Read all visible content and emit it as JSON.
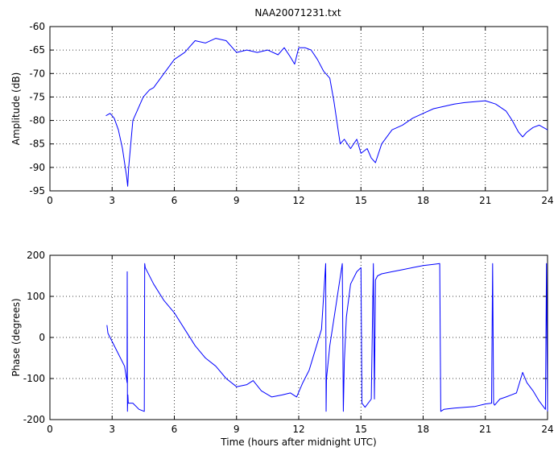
{
  "chart_data": [
    {
      "type": "line",
      "title": "NAA20071231.txt",
      "xlabel": "",
      "ylabel": "Amplitude (dB)",
      "xlim": [
        0,
        24
      ],
      "ylim": [
        -95,
        -60
      ],
      "xticks": [
        0,
        3,
        6,
        9,
        12,
        15,
        18,
        21,
        24
      ],
      "yticks": [
        -95,
        -90,
        -85,
        -80,
        -75,
        -70,
        -65,
        -60
      ],
      "grid": true,
      "color": "#0000ff",
      "series": [
        {
          "x": [
            2.7,
            2.9,
            3.1,
            3.3,
            3.5,
            3.6,
            3.7,
            3.75,
            3.8,
            3.9,
            4.0,
            4.2,
            4.5,
            4.8,
            5.0,
            5.5,
            6.0,
            6.5,
            7.0,
            7.5,
            8.0,
            8.5,
            9.0,
            9.5,
            10.0,
            10.5,
            11.0,
            11.3,
            11.6,
            11.8,
            12.0,
            12.3,
            12.6,
            12.9,
            13.2,
            13.5,
            13.7,
            13.9,
            14.0,
            14.2,
            14.5,
            14.8,
            15.0,
            15.3,
            15.5,
            15.7,
            16.0,
            16.5,
            17.0,
            17.5,
            18.0,
            18.5,
            19.0,
            19.5,
            20.0,
            20.5,
            21.0,
            21.5,
            22.0,
            22.3,
            22.6,
            22.8,
            23.0,
            23.3,
            23.6,
            24.0
          ],
          "y": [
            -79,
            -78.5,
            -79.5,
            -82,
            -86,
            -89,
            -92,
            -94,
            -90,
            -85,
            -80,
            -78,
            -75,
            -73.5,
            -73,
            -70,
            -67,
            -65.5,
            -63,
            -63.5,
            -62.5,
            -63,
            -65.5,
            -65,
            -65.5,
            -65,
            -66,
            -64.5,
            -66.5,
            -68,
            -64.5,
            -64.5,
            -65,
            -67,
            -69.5,
            -71,
            -76,
            -82,
            -85,
            -84,
            -86,
            -84,
            -87,
            -86,
            -88,
            -89,
            -85,
            -82,
            -81,
            -79.5,
            -78.5,
            -77.5,
            -77,
            -76.5,
            -76.2,
            -76,
            -75.8,
            -76.5,
            -78,
            -80,
            -82.5,
            -83.5,
            -82.5,
            -81.5,
            -81,
            -82
          ]
        }
      ]
    },
    {
      "type": "line",
      "title": "",
      "xlabel": "Time (hours after midnight UTC)",
      "ylabel": "Phase (degrees)",
      "xlim": [
        0,
        24
      ],
      "ylim": [
        -200,
        200
      ],
      "xticks": [
        0,
        3,
        6,
        9,
        12,
        15,
        18,
        21,
        24
      ],
      "yticks": [
        -200,
        -100,
        0,
        100,
        200
      ],
      "grid": true,
      "color": "#0000ff",
      "series": [
        {
          "x": [
            2.75,
            2.8,
            3.0,
            3.3,
            3.6,
            3.72,
            3.73,
            3.74,
            3.76,
            3.78,
            4.0,
            4.3,
            4.55,
            4.57,
            4.6,
            5.0,
            5.5,
            6.0,
            6.5,
            7.0,
            7.5,
            8.0,
            8.5,
            9.0,
            9.5,
            9.8,
            10.2,
            10.7,
            11.2,
            11.6,
            11.9,
            12.2,
            12.5,
            12.8,
            13.1,
            13.3,
            13.32,
            13.34,
            13.5,
            13.8,
            14.1,
            14.15,
            14.2,
            14.3,
            14.5,
            14.8,
            15.0,
            15.05,
            15.2,
            15.5,
            15.6,
            15.65,
            15.7,
            15.8,
            16.0,
            16.5,
            17.0,
            17.5,
            18.0,
            18.5,
            18.8,
            18.85,
            19.0,
            19.5,
            20.0,
            20.5,
            21.0,
            21.3,
            21.35,
            21.4,
            21.45,
            21.7,
            22.0,
            22.5,
            22.8,
            23.0,
            23.3,
            23.6,
            23.9,
            23.95,
            24.0
          ],
          "y": [
            30,
            10,
            -10,
            -40,
            -70,
            -110,
            160,
            -180,
            -140,
            -160,
            -160,
            -175,
            -180,
            180,
            170,
            130,
            90,
            60,
            20,
            -20,
            -50,
            -70,
            -100,
            -120,
            -115,
            -105,
            -130,
            -145,
            -140,
            -135,
            -145,
            -110,
            -80,
            -30,
            20,
            180,
            -180,
            -100,
            -20,
            80,
            180,
            -180,
            -60,
            50,
            130,
            160,
            170,
            -160,
            -170,
            -150,
            180,
            -150,
            140,
            150,
            155,
            160,
            165,
            170,
            175,
            178,
            180,
            -180,
            -175,
            -172,
            -170,
            -168,
            -162,
            -160,
            180,
            -160,
            -165,
            -150,
            -145,
            -135,
            -85,
            -110,
            -130,
            -155,
            -175,
            180,
            -180
          ]
        }
      ]
    }
  ]
}
